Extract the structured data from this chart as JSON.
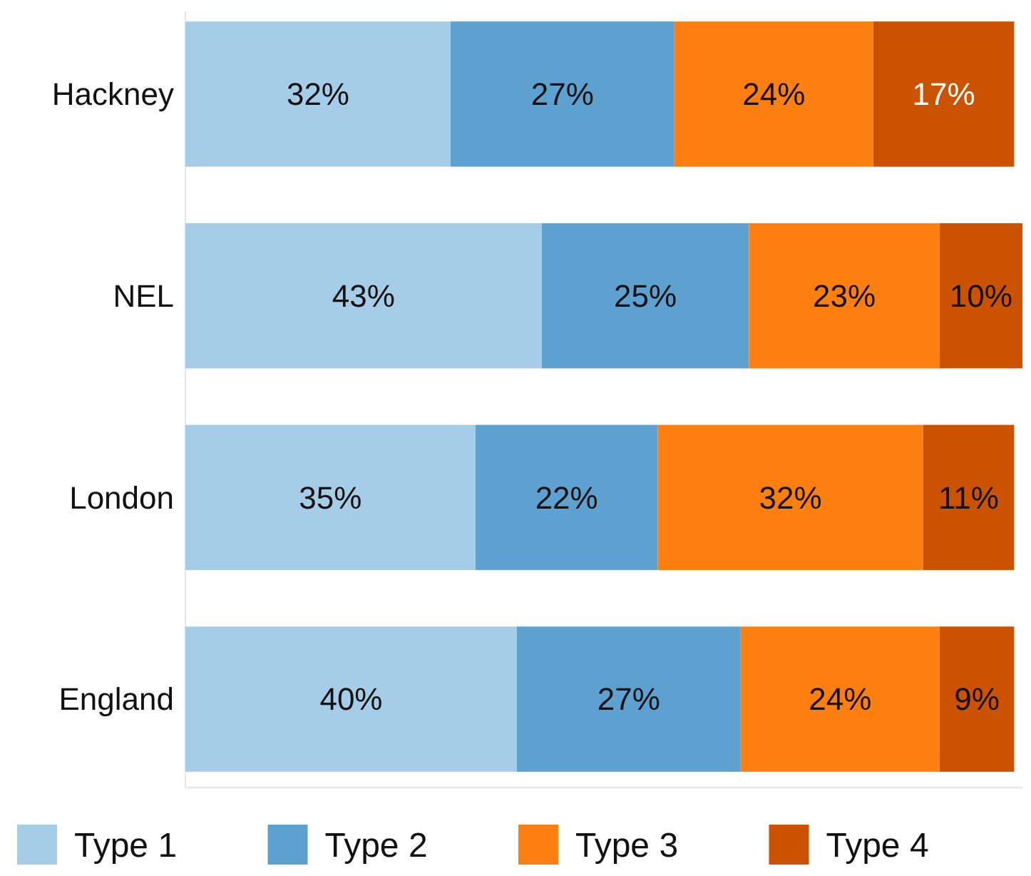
{
  "chart_data": {
    "type": "bar",
    "orientation": "horizontal",
    "stacked": true,
    "categories": [
      "Hackney",
      "NEL",
      "London",
      "England"
    ],
    "series": [
      {
        "name": "Type 1",
        "color": "#a6cde8",
        "values": [
          32,
          43,
          35,
          40
        ],
        "value_labels": [
          "32%",
          "43%",
          "35%",
          "40%"
        ]
      },
      {
        "name": "Type 2",
        "color": "#5ca1cf",
        "values": [
          27,
          25,
          22,
          27
        ],
        "value_labels": [
          "27%",
          "25%",
          "22%",
          "27%"
        ]
      },
      {
        "name": "Type 3",
        "color": "#fd7f0f",
        "values": [
          24,
          23,
          32,
          24
        ],
        "value_labels": [
          "24%",
          "23%",
          "32%",
          "24%"
        ]
      },
      {
        "name": "Type 4",
        "color": "#cb5300",
        "values": [
          17,
          10,
          11,
          9
        ],
        "value_labels": [
          "17%",
          "10%",
          "11%",
          "9%"
        ]
      }
    ],
    "tick_labels": "y",
    "legend": "bottom"
  }
}
